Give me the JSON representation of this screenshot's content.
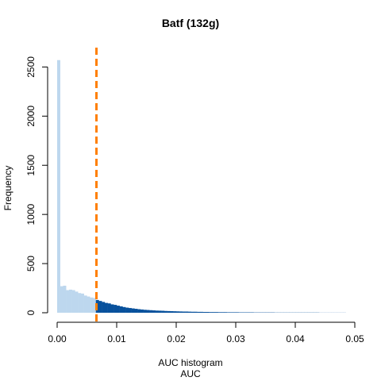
{
  "chart_data": {
    "type": "bar",
    "title": "Batf (132g)",
    "xlabel": "AUC histogram",
    "xlabel2": "AUC",
    "ylabel": "Frequency",
    "xlim": [
      0.0,
      0.05
    ],
    "ylim": [
      0,
      2600
    ],
    "x_ticks": [
      "0.00",
      "0.01",
      "0.02",
      "0.03",
      "0.04",
      "0.05"
    ],
    "y_ticks": [
      "0",
      "500",
      "1000",
      "1500",
      "2000",
      "2500"
    ],
    "bin_width": 0.0005,
    "bin_start": 0.0,
    "threshold": 0.0066,
    "colors": {
      "below_threshold": "#bdd7ee",
      "above_threshold": "#08519c",
      "threshold_line": "#ff7f00"
    },
    "values": [
      2570,
      270,
      275,
      230,
      235,
      230,
      215,
      200,
      195,
      175,
      165,
      155,
      150,
      130,
      120,
      110,
      100,
      95,
      85,
      80,
      72,
      65,
      58,
      52,
      48,
      44,
      40,
      36,
      33,
      30,
      28,
      26,
      24,
      22,
      21,
      20,
      18,
      17,
      16,
      15,
      14,
      13,
      12,
      12,
      11,
      10,
      10,
      9,
      9,
      8,
      8,
      7,
      7,
      7,
      6,
      6,
      6,
      5,
      5,
      5,
      5,
      4,
      4,
      4,
      4,
      4,
      3,
      3,
      3,
      3,
      3,
      3,
      3,
      2,
      2,
      2,
      2,
      2,
      2,
      2,
      2,
      2,
      2,
      2,
      2,
      2,
      2,
      2,
      1,
      1,
      1,
      1,
      1,
      1,
      1,
      1,
      1
    ]
  }
}
